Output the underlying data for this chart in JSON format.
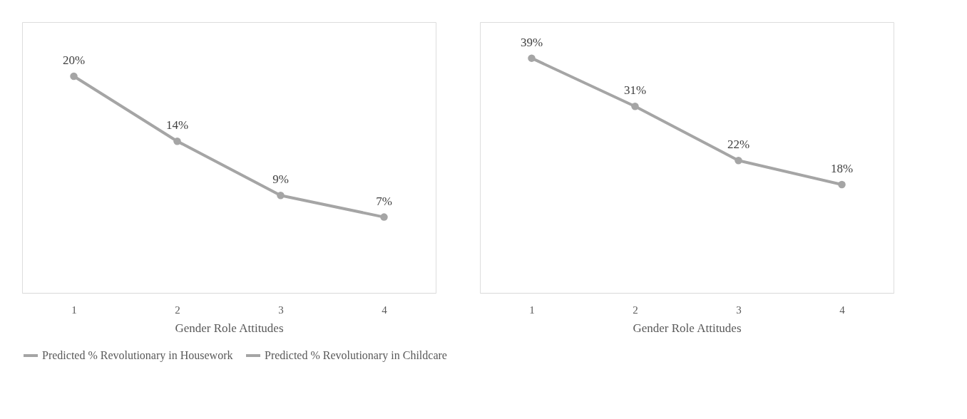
{
  "chart_data": [
    {
      "type": "line",
      "categories": [
        "1",
        "2",
        "3",
        "4"
      ],
      "xlabel": "Gender Role Attitudes",
      "ylim": [
        0,
        25
      ],
      "tick_labels": "x",
      "legend": "bottom",
      "marker": "circle",
      "line_style": "solid",
      "grid": false,
      "series": [
        {
          "name": "Predicted % Revolutionary in Housework",
          "color": "#a5a5a5",
          "values": [
            20,
            14,
            9,
            7
          ],
          "value_labels": [
            "20%",
            "14%",
            "9%",
            "7%"
          ]
        }
      ]
    },
    {
      "type": "line",
      "categories": [
        "1",
        "2",
        "3",
        "4"
      ],
      "xlabel": "Gender Role Attitudes",
      "ylim": [
        0,
        45
      ],
      "tick_labels": "x",
      "legend": "bottom",
      "marker": "circle",
      "line_style": "solid",
      "grid": false,
      "series": [
        {
          "name": "Predicted % Revolutionary in Childcare",
          "color": "#a5a5a5",
          "values": [
            39,
            31,
            22,
            18
          ],
          "value_labels": [
            "39%",
            "31%",
            "22%",
            "18%"
          ]
        }
      ]
    }
  ]
}
